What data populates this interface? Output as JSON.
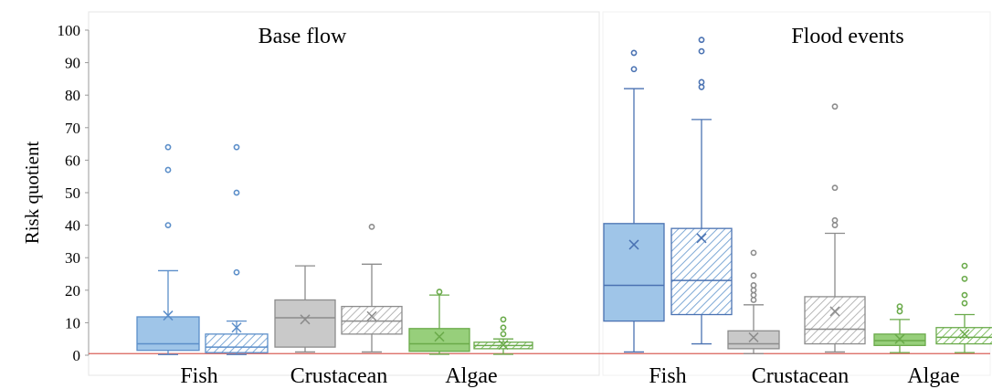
{
  "chart_data": {
    "type": "box",
    "ylabel": "Risk quotient",
    "ylim": [
      0,
      100
    ],
    "yticks": [
      0,
      10,
      20,
      30,
      40,
      50,
      60,
      70,
      80,
      90,
      100
    ],
    "grid": false,
    "threshold_line": 0.5,
    "categories": [
      "Fish",
      "Crustacean",
      "Algae"
    ],
    "panels": [
      {
        "title": "Base flow",
        "groups": [
          {
            "category": "Fish",
            "boxes": [
              {
                "pattern": "solid",
                "color": "#5b8ec9",
                "fill": "#9fc5e8",
                "min": 0.2,
                "q1": 1.5,
                "median": 3.5,
                "q3": 11.8,
                "max": 26,
                "mean": 12.2,
                "outliers": [
                  40,
                  57,
                  64
                ]
              },
              {
                "pattern": "hatched",
                "color": "#5b8ec9",
                "fill": "#9fc5e8",
                "min": 0.2,
                "q1": 0.8,
                "median": 2.5,
                "q3": 6.5,
                "max": 10.5,
                "mean": 8.5,
                "outliers": [
                  25.5,
                  50,
                  64
                ]
              }
            ]
          },
          {
            "category": "Crustacean",
            "boxes": [
              {
                "pattern": "solid",
                "color": "#8c8c8c",
                "fill": "#c9c9c9",
                "min": 1.0,
                "q1": 2.5,
                "median": 11.5,
                "q3": 17,
                "max": 27.5,
                "mean": 11,
                "outliers": []
              },
              {
                "pattern": "hatched",
                "color": "#8c8c8c",
                "fill": "#c9c9c9",
                "min": 1.0,
                "q1": 6.5,
                "median": 10.5,
                "q3": 15,
                "max": 28,
                "mean": 12,
                "outliers": [
                  39.5
                ]
              }
            ]
          },
          {
            "category": "Algae",
            "boxes": [
              {
                "pattern": "solid",
                "color": "#6aaa4a",
                "fill": "#97cf7b",
                "min": 0.3,
                "q1": 1.2,
                "median": 3.5,
                "q3": 8.2,
                "max": 18.5,
                "mean": 5.7,
                "outliers": [
                  19.5
                ]
              },
              {
                "pattern": "hatched",
                "color": "#6aaa4a",
                "fill": "#97cf7b",
                "min": 0.3,
                "q1": 2.0,
                "median": 3.0,
                "q3": 4.0,
                "max": 5.0,
                "mean": 3.2,
                "outliers": [
                  6.5,
                  8.5,
                  11
                ]
              }
            ]
          }
        ]
      },
      {
        "title": "Flood events",
        "groups": [
          {
            "category": "Fish",
            "boxes": [
              {
                "pattern": "solid",
                "color": "#4a72b2",
                "fill": "#9fc5e8",
                "min": 1.0,
                "q1": 10.5,
                "median": 21.5,
                "q3": 40.5,
                "max": 82,
                "mean": 34,
                "outliers": [
                  88,
                  93
                ]
              },
              {
                "pattern": "hatched",
                "color": "#4a72b2",
                "fill": "#9fc5e8",
                "min": 3.5,
                "q1": 12.5,
                "median": 23,
                "q3": 39,
                "max": 72.5,
                "mean": 36,
                "outliers": [
                  82.5,
                  84,
                  93.5,
                  97
                ]
              }
            ]
          },
          {
            "category": "Crustacean",
            "boxes": [
              {
                "pattern": "solid",
                "color": "#8c8c8c",
                "fill": "#c9c9c9",
                "min": 0.5,
                "q1": 2.0,
                "median": 3.5,
                "q3": 7.5,
                "max": 15.5,
                "mean": 5.5,
                "outliers": [
                  17,
                  18.5,
                  20,
                  21.5,
                  24.5,
                  31.5
                ]
              },
              {
                "pattern": "hatched",
                "color": "#8c8c8c",
                "fill": "#c9c9c9",
                "min": 1.0,
                "q1": 3.5,
                "median": 8.0,
                "q3": 18,
                "max": 37.5,
                "mean": 13.5,
                "outliers": [
                  40,
                  41.5,
                  51.5,
                  76.5
                ]
              }
            ]
          },
          {
            "category": "Algae",
            "boxes": [
              {
                "pattern": "solid",
                "color": "#6aaa4a",
                "fill": "#97cf7b",
                "min": 0.8,
                "q1": 3.0,
                "median": 4.5,
                "q3": 6.5,
                "max": 11,
                "mean": 5,
                "outliers": [
                  13.5,
                  15
                ]
              },
              {
                "pattern": "hatched",
                "color": "#6aaa4a",
                "fill": "#97cf7b",
                "min": 0.8,
                "q1": 3.5,
                "median": 5.5,
                "q3": 8.5,
                "max": 12.5,
                "mean": 6.5,
                "outliers": [
                  16,
                  18.5,
                  23.5,
                  27.5
                ]
              }
            ]
          }
        ]
      }
    ]
  }
}
